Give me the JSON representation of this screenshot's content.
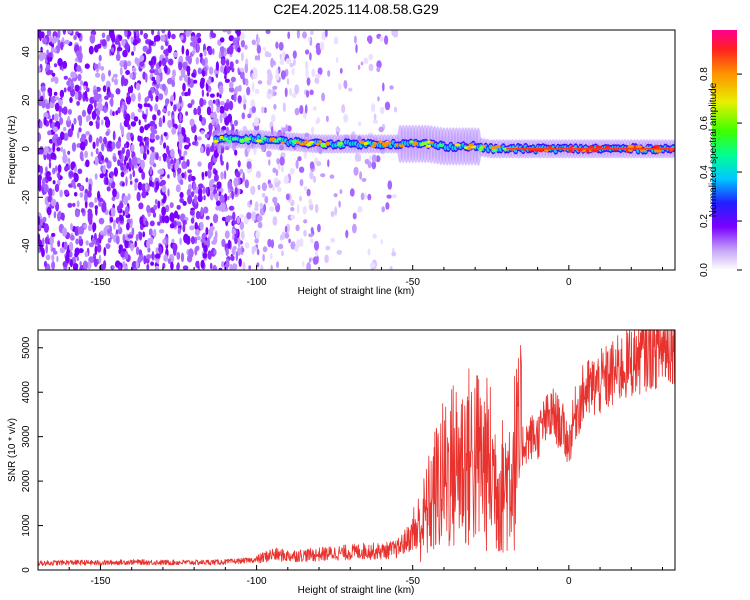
{
  "title": "C2E4.2025.114.08.58.G29",
  "chart_data": [
    {
      "type": "heatmap",
      "xlabel": "Height of straight line (km)",
      "ylabel": "Frequency (Hz)",
      "xlim": [
        -170,
        34
      ],
      "ylim": [
        -50,
        49
      ],
      "x_ticks": [
        -150,
        -100,
        -50,
        0
      ],
      "y_ticks": [
        -40,
        -20,
        0,
        20,
        40
      ],
      "colorbar": {
        "label": "Normalized spectral amplitude",
        "range": [
          0.0,
          0.98
        ],
        "ticks": [
          0.0,
          0.2,
          0.4,
          0.6,
          0.8
        ],
        "tick_labels": [
          "0.0",
          "0.2",
          "0.4",
          "0.6",
          "0.8"
        ]
      },
      "centerline": {
        "x": [
          -113,
          -100,
          -90,
          -80,
          -70,
          -60,
          -50,
          -45,
          -40,
          -35,
          -30,
          -25,
          -20,
          -10,
          0,
          10,
          20,
          34
        ],
        "y": [
          4,
          4,
          3,
          2,
          2,
          2,
          2,
          2,
          1,
          1,
          1,
          0,
          0,
          0,
          0,
          0,
          0,
          0
        ]
      }
    },
    {
      "type": "line",
      "xlabel": "Height of straight line (km)",
      "ylabel": "SNR (10 * v/v)",
      "xlim": [
        -170,
        34
      ],
      "ylim": [
        0,
        5400
      ],
      "x_ticks": [
        -150,
        -100,
        -50,
        0
      ],
      "y_ticks": [
        0,
        1000,
        2000,
        3000,
        4000,
        5000
      ],
      "series": [
        {
          "color": "#e8322e",
          "x": [
            -170,
            -160,
            -150,
            -140,
            -130,
            -120,
            -110,
            -100,
            -95,
            -90,
            -85,
            -80,
            -75,
            -70,
            -65,
            -60,
            -55,
            -50,
            -47,
            -45,
            -42,
            -40,
            -38,
            -35,
            -33,
            -30,
            -28,
            -25,
            -22,
            -20,
            -18,
            -15,
            -12,
            -10,
            -8,
            -5,
            -2,
            0,
            2,
            5,
            10,
            15,
            20,
            25,
            30,
            34
          ],
          "y": [
            150,
            170,
            160,
            180,
            170,
            170,
            180,
            230,
            350,
            320,
            330,
            350,
            380,
            400,
            430,
            420,
            470,
            800,
            1050,
            1400,
            1900,
            2100,
            2300,
            2400,
            2500,
            2550,
            2450,
            2300,
            1800,
            2000,
            2400,
            2800,
            3000,
            3000,
            3300,
            3500,
            3200,
            2800,
            3500,
            4000,
            4200,
            4450,
            4700,
            4900,
            5000,
            5100
          ]
        }
      ]
    }
  ]
}
